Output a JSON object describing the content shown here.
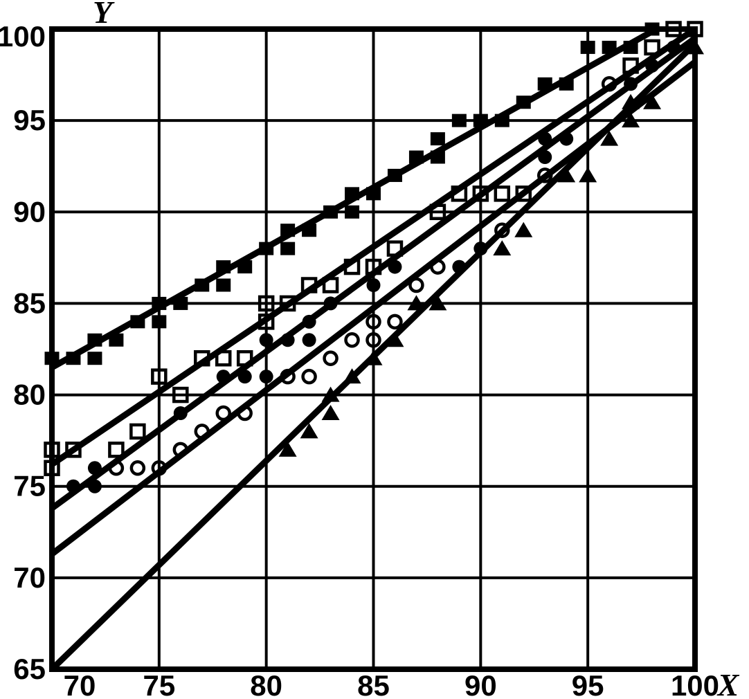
{
  "figure": {
    "kind": "scanned textbook scatter plot with fitted regression lines",
    "background_color": "#ffffff",
    "ink_color": "#000000"
  },
  "chart_data": {
    "type": "scatter",
    "title": "",
    "xlabel": "X",
    "ylabel": "Y",
    "xlim": [
      70,
      100
    ],
    "ylim": [
      65,
      100
    ],
    "x_ticks": [
      70,
      75,
      80,
      85,
      90,
      95,
      100
    ],
    "y_ticks": [
      65,
      70,
      75,
      80,
      85,
      90,
      95,
      100
    ],
    "grid": true,
    "grid_interval": 5,
    "legend": "none",
    "series": [
      {
        "name": "filled-squares",
        "marker": "filled-square",
        "points": [
          [
            70,
            82
          ],
          [
            71,
            82
          ],
          [
            72,
            82
          ],
          [
            72,
            83
          ],
          [
            73,
            83
          ],
          [
            74,
            84
          ],
          [
            75,
            84
          ],
          [
            75,
            85
          ],
          [
            76,
            85
          ],
          [
            77,
            86
          ],
          [
            78,
            86
          ],
          [
            78,
            87
          ],
          [
            79,
            87
          ],
          [
            80,
            88
          ],
          [
            81,
            88
          ],
          [
            81,
            89
          ],
          [
            82,
            89
          ],
          [
            83,
            90
          ],
          [
            84,
            90
          ],
          [
            84,
            91
          ],
          [
            85,
            91
          ],
          [
            86,
            92
          ],
          [
            87,
            93
          ],
          [
            88,
            93
          ],
          [
            88,
            94
          ],
          [
            89,
            95
          ],
          [
            90,
            95
          ],
          [
            91,
            95
          ],
          [
            92,
            96
          ],
          [
            93,
            97
          ],
          [
            94,
            97
          ],
          [
            95,
            99
          ],
          [
            96,
            99
          ],
          [
            97,
            99
          ],
          [
            98,
            100
          ]
        ]
      },
      {
        "name": "open-squares",
        "marker": "open-square",
        "points": [
          [
            70,
            76
          ],
          [
            70,
            77
          ],
          [
            71,
            77
          ],
          [
            73,
            77
          ],
          [
            74,
            78
          ],
          [
            75,
            81
          ],
          [
            76,
            80
          ],
          [
            77,
            82
          ],
          [
            78,
            82
          ],
          [
            79,
            82
          ],
          [
            80,
            84
          ],
          [
            80,
            85
          ],
          [
            81,
            85
          ],
          [
            82,
            86
          ],
          [
            83,
            86
          ],
          [
            84,
            87
          ],
          [
            85,
            87
          ],
          [
            86,
            88
          ],
          [
            88,
            90
          ],
          [
            89,
            91
          ],
          [
            90,
            91
          ],
          [
            91,
            91
          ],
          [
            92,
            91
          ],
          [
            97,
            98
          ],
          [
            98,
            99
          ],
          [
            99,
            100
          ],
          [
            100,
            100
          ]
        ]
      },
      {
        "name": "filled-circles",
        "marker": "filled-circle",
        "points": [
          [
            71,
            75
          ],
          [
            72,
            75
          ],
          [
            72,
            76
          ],
          [
            76,
            79
          ],
          [
            78,
            81
          ],
          [
            79,
            81
          ],
          [
            80,
            81
          ],
          [
            80,
            83
          ],
          [
            81,
            83
          ],
          [
            82,
            83
          ],
          [
            82,
            84
          ],
          [
            83,
            85
          ],
          [
            85,
            86
          ],
          [
            86,
            87
          ],
          [
            89,
            87
          ],
          [
            90,
            88
          ],
          [
            93,
            93
          ],
          [
            93,
            94
          ],
          [
            94,
            94
          ],
          [
            97,
            97
          ],
          [
            98,
            98
          ],
          [
            99,
            99
          ]
        ]
      },
      {
        "name": "open-circles",
        "marker": "open-circle",
        "points": [
          [
            73,
            76
          ],
          [
            74,
            76
          ],
          [
            75,
            76
          ],
          [
            76,
            77
          ],
          [
            77,
            78
          ],
          [
            78,
            79
          ],
          [
            79,
            79
          ],
          [
            81,
            81
          ],
          [
            82,
            81
          ],
          [
            83,
            82
          ],
          [
            84,
            83
          ],
          [
            85,
            83
          ],
          [
            85,
            84
          ],
          [
            86,
            84
          ],
          [
            87,
            86
          ],
          [
            88,
            87
          ],
          [
            91,
            89
          ],
          [
            93,
            92
          ],
          [
            96,
            97
          ]
        ]
      },
      {
        "name": "filled-triangles",
        "marker": "filled-triangle",
        "points": [
          [
            81,
            77
          ],
          [
            82,
            78
          ],
          [
            83,
            79
          ],
          [
            83,
            80
          ],
          [
            84,
            81
          ],
          [
            85,
            82
          ],
          [
            86,
            83
          ],
          [
            87,
            85
          ],
          [
            88,
            85
          ],
          [
            91,
            88
          ],
          [
            92,
            89
          ],
          [
            94,
            92
          ],
          [
            95,
            92
          ],
          [
            96,
            94
          ],
          [
            97,
            95
          ],
          [
            97,
            96
          ],
          [
            98,
            96
          ],
          [
            100,
            99
          ]
        ]
      }
    ],
    "fit_lines": [
      {
        "series": "filled-squares",
        "from": [
          70,
          81.5
        ],
        "to": [
          98.2,
          100.0
        ]
      },
      {
        "series": "open-squares",
        "from": [
          70,
          76.2
        ],
        "to": [
          100.0,
          100.0
        ]
      },
      {
        "series": "filled-circles",
        "from": [
          70,
          73.8
        ],
        "to": [
          100.0,
          99.5
        ]
      },
      {
        "series": "open-circles",
        "from": [
          70,
          71.3
        ],
        "to": [
          100.0,
          98.2
        ]
      },
      {
        "series": "filled-triangles",
        "from": [
          70,
          65.0
        ],
        "to": [
          100.0,
          99.2
        ]
      }
    ],
    "colors": {
      "ink": "#000000",
      "background": "#ffffff"
    }
  }
}
